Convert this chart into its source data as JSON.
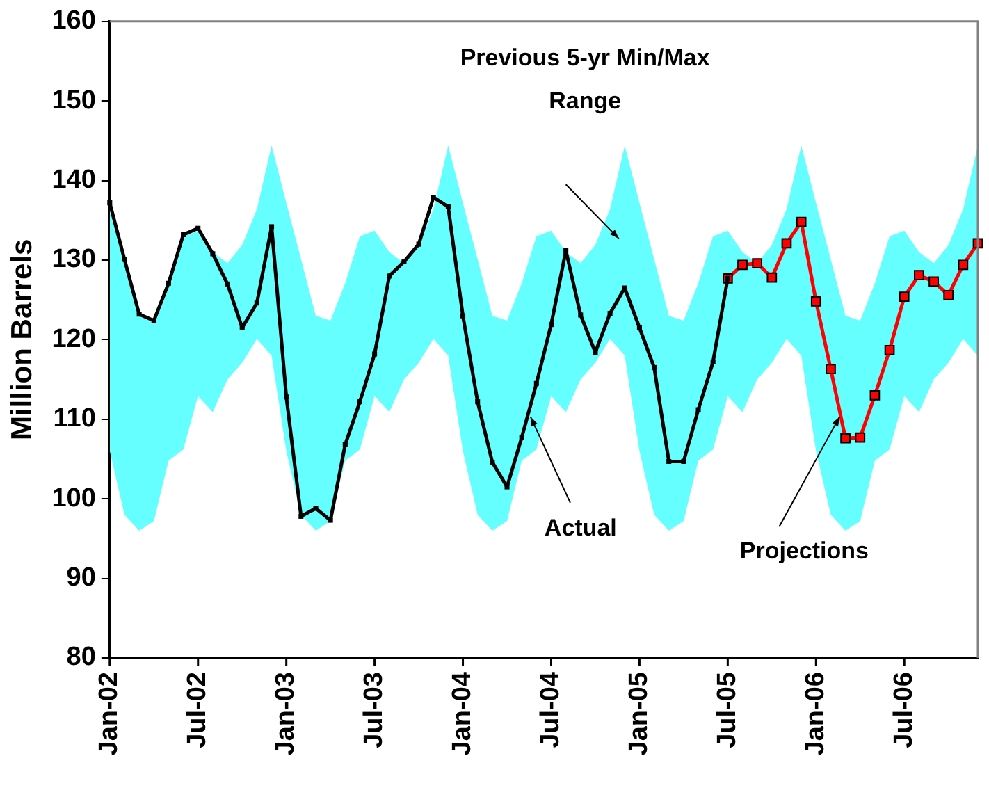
{
  "chart_data": {
    "type": "line",
    "ylabel": "Million Barrels",
    "categories": [
      "Jan-02",
      null,
      null,
      null,
      null,
      null,
      "Jul-02",
      null,
      null,
      null,
      null,
      null,
      "Jan-03",
      null,
      null,
      null,
      null,
      null,
      "Jul-03",
      null,
      null,
      null,
      null,
      null,
      "Jan-04",
      null,
      null,
      null,
      null,
      null,
      "Jul-04",
      null,
      null,
      null,
      null,
      null,
      "Jan-05",
      null,
      null,
      null,
      null,
      null,
      "Jul-05",
      null,
      null,
      null,
      null,
      null,
      "Jan-06",
      null,
      null,
      null,
      null,
      null,
      "Jul-06",
      null,
      null,
      null,
      null,
      null
    ],
    "ylim": [
      80,
      160
    ],
    "yticks": [
      80,
      90,
      100,
      110,
      120,
      130,
      140,
      150,
      160
    ],
    "series": [
      {
        "type": "area",
        "color": "#66ffff",
        "values": [
          null,
          null,
          null,
          null,
          null,
          null,
          null,
          null,
          null,
          null,
          null,
          null,
          null,
          null,
          null,
          null,
          null,
          null,
          null,
          null,
          null,
          null,
          null,
          null,
          null,
          null,
          null,
          null,
          null,
          null,
          null,
          null,
          null,
          null,
          null,
          null,
          null,
          null,
          null,
          null,
          null,
          null,
          null,
          null,
          null,
          null,
          null,
          null,
          null,
          null,
          null,
          null,
          null,
          null,
          null,
          null,
          null,
          null,
          null,
          null
        ],
        "lower": [
          106,
          98,
          96,
          97.2,
          104.8,
          106.2,
          112.9,
          110.9,
          115,
          117.1,
          120.1,
          118,
          106,
          98,
          96,
          97.2,
          104.8,
          106.2,
          112.9,
          110.9,
          115,
          117.1,
          120.1,
          118,
          106,
          98,
          96,
          97.2,
          104.8,
          106.2,
          112.9,
          110.9,
          115,
          117.1,
          120.1,
          118,
          106,
          98,
          96,
          97.2,
          104.8,
          106.2,
          112.9,
          110.9,
          115,
          117.1,
          120.1,
          118,
          106,
          98,
          96,
          97.2,
          104.8,
          106.2,
          112.9,
          110.9,
          115,
          117.1,
          120.1,
          118
        ],
        "upper": [
          137.2,
          130.1,
          123,
          122.4,
          127.1,
          133,
          133.7,
          131,
          129.6,
          131.9,
          136.4,
          144.4,
          137.2,
          130.1,
          123,
          122.4,
          127.1,
          133,
          133.7,
          131,
          129.6,
          131.9,
          136.4,
          144.4,
          137.2,
          130.1,
          123,
          122.4,
          127.1,
          133,
          133.7,
          131,
          129.6,
          131.9,
          136.4,
          144.4,
          137.2,
          130.1,
          123,
          122.4,
          127.1,
          133,
          133.7,
          131,
          129.6,
          131.9,
          136.4,
          144.4,
          137.2,
          130.1,
          123,
          122.4,
          127.1,
          133,
          133.7,
          131,
          129.6,
          131.9,
          136.4,
          144.4
        ]
      },
      {
        "name": "Actual",
        "type": "line",
        "marker": "square",
        "color": "#000000",
        "values": [
          137.2,
          130.1,
          123.2,
          122.4,
          127.1,
          133.2,
          134,
          130.8,
          127,
          121.5,
          124.6,
          134.2,
          112.8,
          97.8,
          98.8,
          97.3,
          106.8,
          112.2,
          118.2,
          128,
          129.8,
          132,
          137.9,
          136.7,
          123,
          112.2,
          104.6,
          101.5,
          107.7,
          114.5,
          121.9,
          131.2,
          123.1,
          118.4,
          123.3,
          126.5,
          121.5,
          116.5,
          104.7,
          104.7,
          111.2,
          117.2,
          127.7,
          null,
          null,
          null,
          null,
          null,
          null,
          null,
          null,
          null,
          null,
          null,
          null,
          null,
          null,
          null,
          null,
          null
        ]
      },
      {
        "name": "Projections",
        "type": "line",
        "marker": "square",
        "color": "#ff0000",
        "values": [
          null,
          null,
          null,
          null,
          null,
          null,
          null,
          null,
          null,
          null,
          null,
          null,
          null,
          null,
          null,
          null,
          null,
          null,
          null,
          null,
          null,
          null,
          null,
          null,
          null,
          null,
          null,
          null,
          null,
          null,
          null,
          null,
          null,
          null,
          null,
          null,
          null,
          null,
          null,
          null,
          null,
          null,
          127.7,
          129.4,
          129.6,
          127.8,
          132.1,
          134.8,
          124.8,
          116.3,
          107.6,
          107.7,
          113,
          118.7,
          125.4,
          128.1,
          127.3,
          125.6,
          129.4,
          132.1
        ]
      }
    ],
    "annotations": [
      "Previous 5-yr Min/Max Range"
    ],
    "line_style": "solid",
    "grid": false,
    "legend": false
  }
}
